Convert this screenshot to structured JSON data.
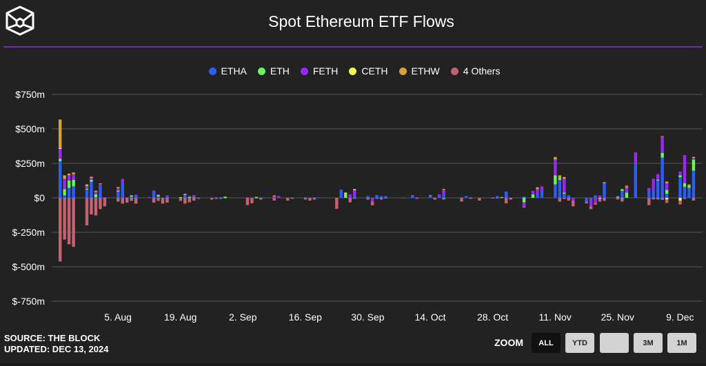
{
  "header": {
    "title": "Spot Ethereum ETF Flows",
    "logo": "The Block cube logo"
  },
  "footer": {
    "source": "SOURCE: THE BLOCK",
    "updated": "UPDATED: DEC 13, 2024"
  },
  "zoom": {
    "label": "ZOOM",
    "buttons": [
      "ALL",
      "YTD",
      "",
      "3M",
      "1M"
    ],
    "active": "ALL"
  },
  "colors": {
    "background": "#222222",
    "grid": "#444444",
    "accent": "#7a22c9"
  },
  "chart_data": {
    "type": "bar",
    "stacked": true,
    "title": "Spot Ethereum ETF Flows",
    "ylim": [
      -750,
      750
    ],
    "yunit": "m",
    "yticks": [
      {
        "value": 750,
        "label": "$750m"
      },
      {
        "value": 500,
        "label": "$500m"
      },
      {
        "value": 250,
        "label": "$250m"
      },
      {
        "value": 0,
        "label": "$0"
      },
      {
        "value": -250,
        "label": "$-250m"
      },
      {
        "value": -500,
        "label": "$-500m"
      },
      {
        "value": -750,
        "label": "$-750m"
      }
    ],
    "xticks": [
      {
        "date": "2024-08-05",
        "label": "5. Aug"
      },
      {
        "date": "2024-08-19",
        "label": "19. Aug"
      },
      {
        "date": "2024-09-02",
        "label": "2. Sep"
      },
      {
        "date": "2024-09-16",
        "label": "16. Sep"
      },
      {
        "date": "2024-09-30",
        "label": "30. Sep"
      },
      {
        "date": "2024-10-14",
        "label": "14. Oct"
      },
      {
        "date": "2024-10-28",
        "label": "28. Oct"
      },
      {
        "date": "2024-11-11",
        "label": "11. Nov"
      },
      {
        "date": "2024-11-25",
        "label": "25. Nov"
      },
      {
        "date": "2024-12-09",
        "label": "9. Dec"
      }
    ],
    "grid": true,
    "legend_position": "top",
    "categories": [
      "2024-07-23",
      "2024-07-24",
      "2024-07-25",
      "2024-07-26",
      "2024-07-29",
      "2024-07-30",
      "2024-07-31",
      "2024-08-01",
      "2024-08-02",
      "2024-08-05",
      "2024-08-06",
      "2024-08-07",
      "2024-08-08",
      "2024-08-09",
      "2024-08-12",
      "2024-08-13",
      "2024-08-14",
      "2024-08-15",
      "2024-08-16",
      "2024-08-19",
      "2024-08-20",
      "2024-08-21",
      "2024-08-22",
      "2024-08-23",
      "2024-08-26",
      "2024-08-27",
      "2024-08-28",
      "2024-08-29",
      "2024-08-30",
      "2024-09-03",
      "2024-09-04",
      "2024-09-05",
      "2024-09-06",
      "2024-09-09",
      "2024-09-10",
      "2024-09-11",
      "2024-09-12",
      "2024-09-13",
      "2024-09-16",
      "2024-09-17",
      "2024-09-18",
      "2024-09-19",
      "2024-09-20",
      "2024-09-23",
      "2024-09-24",
      "2024-09-25",
      "2024-09-26",
      "2024-09-27",
      "2024-09-30",
      "2024-10-01",
      "2024-10-02",
      "2024-10-03",
      "2024-10-04",
      "2024-10-07",
      "2024-10-08",
      "2024-10-09",
      "2024-10-10",
      "2024-10-11",
      "2024-10-14",
      "2024-10-15",
      "2024-10-16",
      "2024-10-17",
      "2024-10-18",
      "2024-10-21",
      "2024-10-22",
      "2024-10-23",
      "2024-10-24",
      "2024-10-25",
      "2024-10-28",
      "2024-10-29",
      "2024-10-30",
      "2024-10-31",
      "2024-11-01",
      "2024-11-04",
      "2024-11-05",
      "2024-11-06",
      "2024-11-07",
      "2024-11-08",
      "2024-11-11",
      "2024-11-12",
      "2024-11-13",
      "2024-11-14",
      "2024-11-15",
      "2024-11-18",
      "2024-11-19",
      "2024-11-20",
      "2024-11-21",
      "2024-11-22",
      "2024-11-25",
      "2024-11-26",
      "2024-11-27",
      "2024-11-29",
      "2024-12-02",
      "2024-12-03",
      "2024-12-04",
      "2024-12-05",
      "2024-12-06",
      "2024-12-09",
      "2024-12-10",
      "2024-12-11",
      "2024-12-12"
    ],
    "series": [
      {
        "name": "ETHA",
        "color": "#2b5ef5",
        "values": [
          266,
          18,
          72,
          83,
          60,
          117,
          5,
          85,
          0,
          45,
          110,
          0,
          8,
          18,
          0,
          48,
          10,
          0,
          13,
          0,
          22,
          0,
          0,
          0,
          0,
          0,
          3,
          0,
          0,
          0,
          0,
          0,
          3,
          0,
          0,
          0,
          0,
          3,
          3,
          0,
          3,
          3,
          0,
          0,
          60,
          0,
          0,
          13,
          13,
          0,
          20,
          13,
          13,
          0,
          0,
          0,
          20,
          0,
          13,
          0,
          13,
          23,
          0,
          3,
          13,
          0,
          0,
          0,
          0,
          13,
          0,
          45,
          0,
          10,
          0,
          0,
          25,
          58,
          98,
          130,
          30,
          18,
          0,
          -28,
          -15,
          18,
          0,
          105,
          3,
          50,
          0,
          250,
          50,
          63,
          125,
          292,
          30,
          150,
          80,
          72,
          197
        ]
      },
      {
        "name": "ETH",
        "color": "#6af55a",
        "values": [
          17,
          45,
          53,
          48,
          5,
          13,
          20,
          0,
          0,
          7,
          0,
          0,
          10,
          0,
          0,
          0,
          10,
          0,
          0,
          5,
          0,
          5,
          3,
          0,
          0,
          0,
          0,
          7,
          0,
          0,
          0,
          7,
          0,
          0,
          0,
          0,
          0,
          0,
          0,
          0,
          0,
          0,
          0,
          0,
          0,
          32,
          0,
          0,
          0,
          0,
          0,
          0,
          0,
          0,
          0,
          0,
          0,
          0,
          0,
          0,
          0,
          0,
          0,
          0,
          0,
          0,
          0,
          0,
          0,
          0,
          3,
          0,
          0,
          -33,
          0,
          25,
          0,
          0,
          65,
          13,
          8,
          0,
          0,
          0,
          0,
          0,
          -8,
          0,
          3,
          13,
          38,
          0,
          0,
          0,
          7,
          33,
          28,
          13,
          25,
          13,
          80
        ]
      },
      {
        "name": "FETH",
        "color": "#9b27f2",
        "values": [
          72,
          75,
          38,
          40,
          18,
          13,
          17,
          15,
          5,
          18,
          28,
          3,
          0,
          5,
          5,
          5,
          5,
          0,
          5,
          0,
          0,
          8,
          17,
          0,
          0,
          3,
          0,
          0,
          0,
          3,
          0,
          0,
          0,
          10,
          13,
          0,
          0,
          0,
          0,
          0,
          0,
          0,
          0,
          0,
          0,
          0,
          25,
          43,
          0,
          -27,
          0,
          0,
          0,
          0,
          -3,
          0,
          0,
          3,
          0,
          0,
          12,
          37,
          0,
          0,
          0,
          3,
          0,
          0,
          3,
          0,
          0,
          0,
          0,
          -30,
          0,
          25,
          38,
          25,
          115,
          0,
          100,
          0,
          -20,
          0,
          -47,
          -37,
          18,
          0,
          0,
          0,
          33,
          80,
          22,
          75,
          40,
          117,
          47,
          28,
          205,
          0,
          12
        ]
      },
      {
        "name": "CETH",
        "color": "#f0f55a",
        "values": [
          5,
          0,
          0,
          0,
          0,
          0,
          0,
          0,
          0,
          0,
          0,
          0,
          0,
          0,
          0,
          0,
          0,
          0,
          0,
          0,
          0,
          0,
          0,
          0,
          0,
          0,
          0,
          0,
          0,
          0,
          0,
          0,
          0,
          0,
          0,
          0,
          0,
          0,
          0,
          0,
          0,
          0,
          0,
          0,
          0,
          5,
          0,
          7,
          0,
          0,
          0,
          0,
          0,
          0,
          0,
          0,
          0,
          0,
          0,
          0,
          0,
          0,
          0,
          0,
          0,
          0,
          0,
          0,
          0,
          0,
          0,
          0,
          0,
          0,
          0,
          0,
          0,
          0,
          0,
          0,
          0,
          0,
          0,
          0,
          0,
          0,
          0,
          0,
          0,
          0,
          0,
          0,
          0,
          0,
          0,
          0,
          -12,
          -20,
          0,
          0,
          0
        ]
      },
      {
        "name": "ETHW",
        "color": "#d4a13e",
        "values": [
          208,
          25,
          13,
          13,
          15,
          10,
          10,
          5,
          0,
          8,
          0,
          0,
          0,
          0,
          0,
          0,
          0,
          0,
          0,
          0,
          8,
          0,
          0,
          0,
          0,
          0,
          0,
          2,
          0,
          0,
          0,
          0,
          0,
          7,
          0,
          0,
          0,
          0,
          0,
          0,
          0,
          0,
          0,
          0,
          0,
          2,
          0,
          0,
          0,
          0,
          0,
          0,
          0,
          0,
          0,
          0,
          0,
          0,
          0,
          0,
          0,
          5,
          0,
          0,
          0,
          0,
          0,
          0,
          0,
          0,
          3,
          0,
          0,
          0,
          0,
          0,
          13,
          0,
          18,
          20,
          13,
          0,
          0,
          0,
          0,
          0,
          0,
          8,
          5,
          -7,
          8,
          0,
          0,
          0,
          0,
          5,
          13,
          0,
          0,
          12,
          8
        ]
      },
      {
        "name": "4 Others",
        "color": "#c4636e",
        "values": [
          -462,
          -303,
          -337,
          -356,
          -200,
          -120,
          -128,
          -82,
          -62,
          -28,
          -42,
          -35,
          -22,
          -42,
          0,
          -35,
          -22,
          -42,
          -35,
          -22,
          -42,
          -33,
          -20,
          -7,
          -13,
          -7,
          -7,
          -5,
          0,
          -53,
          -40,
          -5,
          -13,
          -20,
          0,
          0,
          -20,
          -7,
          -13,
          -20,
          -13,
          0,
          0,
          -80,
          0,
          0,
          -33,
          -7,
          -13,
          -27,
          -7,
          -13,
          -5,
          0,
          0,
          0,
          0,
          -7,
          7,
          -13,
          0,
          -13,
          0,
          -27,
          0,
          -7,
          0,
          -20,
          -5,
          -5,
          0,
          -40,
          -13,
          -8,
          0,
          0,
          0,
          0,
          0,
          -28,
          -8,
          -20,
          -42,
          -13,
          -20,
          -13,
          -20,
          -22,
          -12,
          -20,
          12,
          0,
          -53,
          -12,
          -12,
          -15,
          -25,
          -28,
          -8,
          0,
          -20
        ]
      }
    ]
  }
}
